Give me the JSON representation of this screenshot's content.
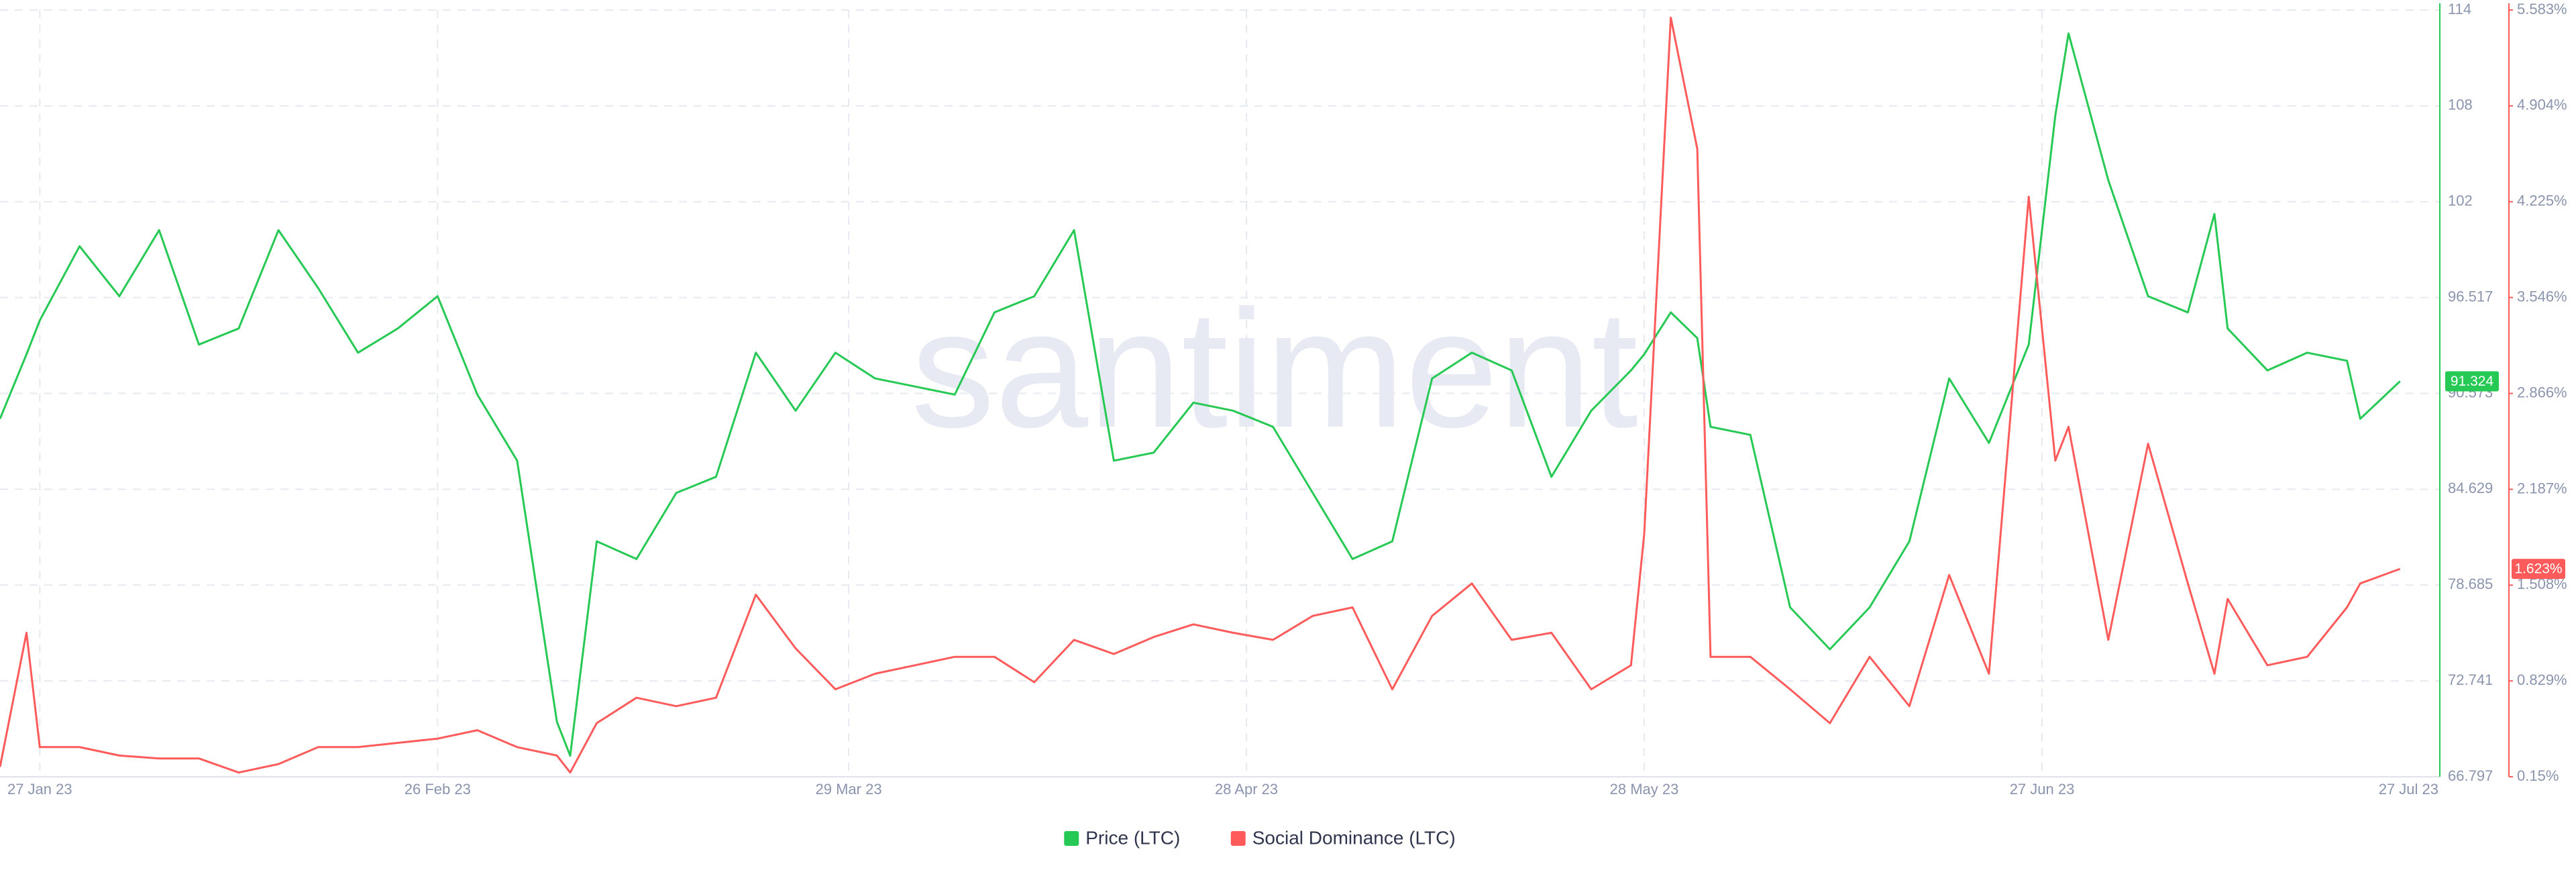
{
  "chart_data": {
    "type": "line",
    "watermark": "santiment",
    "x": [
      "2023-01-24",
      "2023-01-26",
      "2023-01-27",
      "2023-01-30",
      "2023-02-02",
      "2023-02-05",
      "2023-02-08",
      "2023-02-11",
      "2023-02-14",
      "2023-02-17",
      "2023-02-20",
      "2023-02-23",
      "2023-02-26",
      "2023-03-01",
      "2023-03-04",
      "2023-03-07",
      "2023-03-08",
      "2023-03-10",
      "2023-03-13",
      "2023-03-16",
      "2023-03-19",
      "2023-03-22",
      "2023-03-25",
      "2023-03-28",
      "2023-03-31",
      "2023-04-03",
      "2023-04-06",
      "2023-04-09",
      "2023-04-12",
      "2023-04-15",
      "2023-04-18",
      "2023-04-21",
      "2023-04-24",
      "2023-04-27",
      "2023-04-30",
      "2023-05-03",
      "2023-05-06",
      "2023-05-09",
      "2023-05-12",
      "2023-05-15",
      "2023-05-18",
      "2023-05-21",
      "2023-05-24",
      "2023-05-27",
      "2023-05-28",
      "2023-05-30",
      "2023-06-01",
      "2023-06-02",
      "2023-06-05",
      "2023-06-08",
      "2023-06-11",
      "2023-06-14",
      "2023-06-17",
      "2023-06-20",
      "2023-06-23",
      "2023-06-26",
      "2023-06-28",
      "2023-06-29",
      "2023-07-02",
      "2023-07-05",
      "2023-07-08",
      "2023-07-10",
      "2023-07-11",
      "2023-07-14",
      "2023-07-17",
      "2023-07-20",
      "2023-07-21",
      "2023-07-24"
    ],
    "xlim": [
      "2023-01-24",
      "2023-07-27"
    ],
    "xticks": [
      {
        "value": "2023-01-27",
        "label": "27 Jan 23"
      },
      {
        "value": "2023-02-26",
        "label": "26 Feb 23"
      },
      {
        "value": "2023-03-29",
        "label": "29 Mar 23"
      },
      {
        "value": "2023-04-28",
        "label": "28 Apr 23"
      },
      {
        "value": "2023-05-28",
        "label": "28 May 23"
      },
      {
        "value": "2023-06-27",
        "label": "27 Jun 23"
      },
      {
        "value": "2023-07-27",
        "label": "27 Jul 23"
      }
    ],
    "ylim": [
      66.797,
      114.349
    ],
    "yticks": [
      66.797,
      72.741,
      78.685,
      84.629,
      90.573,
      96.517,
      {
        "value": 102.461,
        "label": "102"
      },
      {
        "value": 108.405,
        "label": "108"
      },
      {
        "value": 114.349,
        "label": "114"
      }
    ],
    "y2lim": [
      0.15,
      5.583
    ],
    "y2ticks": [
      {
        "value": 0.15,
        "label": "0.15%"
      },
      {
        "value": 0.829,
        "label": "0.829%"
      },
      {
        "value": 1.508,
        "label": "1.508%"
      },
      {
        "value": 2.187,
        "label": "2.187%"
      },
      {
        "value": 2.866,
        "label": "2.866%"
      },
      {
        "value": 3.546,
        "label": "3.546%"
      },
      {
        "value": 4.225,
        "label": "4.225%"
      },
      {
        "value": 4.904,
        "label": "4.904%"
      },
      {
        "value": 5.583,
        "label": "5.583%"
      }
    ],
    "grid": true,
    "legend": "bottom",
    "series": [
      {
        "name": "Price (LTC)",
        "color": "#26c953",
        "axis": "y",
        "last_label": "91.324",
        "values": [
          89.0,
          93.0,
          95.1,
          99.7,
          96.6,
          100.7,
          93.6,
          94.6,
          100.7,
          97.1,
          93.1,
          94.6,
          96.6,
          90.5,
          86.4,
          70.2,
          68.1,
          81.4,
          80.3,
          84.4,
          85.4,
          93.1,
          89.5,
          93.1,
          91.5,
          91.0,
          90.5,
          95.6,
          96.6,
          100.7,
          86.4,
          86.9,
          90.0,
          89.5,
          88.5,
          84.4,
          80.3,
          81.4,
          91.5,
          93.1,
          92.0,
          85.4,
          89.5,
          92.0,
          93.0,
          95.6,
          94.0,
          88.5,
          88.0,
          77.3,
          74.7,
          77.3,
          81.4,
          91.5,
          87.5,
          93.6,
          107.8,
          112.9,
          103.8,
          96.6,
          95.6,
          101.7,
          94.6,
          92.0,
          93.1,
          92.6,
          89.0,
          91.324
        ]
      },
      {
        "name": "Social Dominance (LTC)",
        "color": "#ff5b5b",
        "axis": "y2",
        "last_label": "1.623%",
        "values": [
          0.22,
          1.17,
          0.36,
          0.36,
          0.3,
          0.28,
          0.28,
          0.18,
          0.24,
          0.36,
          0.36,
          0.39,
          0.42,
          0.48,
          0.36,
          0.3,
          0.18,
          0.53,
          0.71,
          0.65,
          0.71,
          1.44,
          1.06,
          0.77,
          0.88,
          0.94,
          1.0,
          1.0,
          0.82,
          1.12,
          1.02,
          1.14,
          1.23,
          1.17,
          1.12,
          1.29,
          1.35,
          0.77,
          1.29,
          1.52,
          1.12,
          1.17,
          0.77,
          0.94,
          1.87,
          5.53,
          4.6,
          1.0,
          1.0,
          0.77,
          0.53,
          1.0,
          0.65,
          1.58,
          0.88,
          4.26,
          2.39,
          2.63,
          1.12,
          2.51,
          1.52,
          0.88,
          1.41,
          0.94,
          1.0,
          1.35,
          1.52,
          1.623
        ]
      }
    ]
  }
}
